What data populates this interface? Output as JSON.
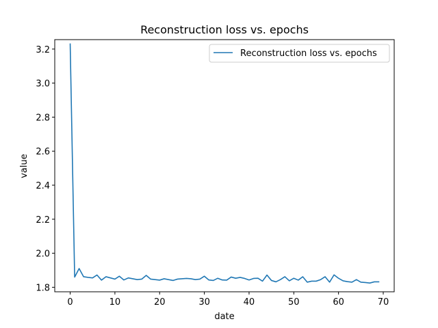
{
  "chart_data": {
    "type": "line",
    "title": "Reconstruction loss vs. epochs",
    "xlabel": "date",
    "ylabel": "value",
    "xlim": [
      -3.45,
      72.45
    ],
    "ylim": [
      1.7735,
      3.2555
    ],
    "xticks": [
      0,
      10,
      20,
      30,
      40,
      50,
      60,
      70
    ],
    "yticks": [
      1.8,
      2.0,
      2.2,
      2.4,
      2.6,
      2.8,
      3.0,
      3.2
    ],
    "ytick_labels": [
      "1.8",
      "2.0",
      "2.2",
      "2.4",
      "2.6",
      "2.8",
      "3.0",
      "3.2"
    ],
    "grid": false,
    "legend_position": "top-right",
    "colors": {
      "series": "#1f77b4"
    },
    "series": [
      {
        "name": "Reconstruction loss vs. epochs",
        "x": [
          0,
          1,
          2,
          3,
          4,
          5,
          6,
          7,
          8,
          9,
          10,
          11,
          12,
          13,
          14,
          15,
          16,
          17,
          18,
          19,
          20,
          21,
          22,
          23,
          24,
          25,
          26,
          27,
          28,
          29,
          30,
          31,
          32,
          33,
          34,
          35,
          36,
          37,
          38,
          39,
          40,
          41,
          42,
          43,
          44,
          45,
          46,
          47,
          48,
          49,
          50,
          51,
          52,
          53,
          54,
          55,
          56,
          57,
          58,
          59,
          60,
          61,
          62,
          63,
          64,
          65,
          66,
          67,
          68,
          69
        ],
        "values": [
          3.23,
          1.86,
          1.91,
          1.862,
          1.858,
          1.855,
          1.872,
          1.842,
          1.862,
          1.855,
          1.848,
          1.865,
          1.843,
          1.855,
          1.85,
          1.845,
          1.848,
          1.87,
          1.848,
          1.845,
          1.842,
          1.85,
          1.845,
          1.84,
          1.848,
          1.85,
          1.852,
          1.85,
          1.845,
          1.848,
          1.865,
          1.843,
          1.84,
          1.853,
          1.843,
          1.842,
          1.86,
          1.853,
          1.858,
          1.852,
          1.843,
          1.852,
          1.853,
          1.836,
          1.872,
          1.84,
          1.832,
          1.845,
          1.862,
          1.838,
          1.853,
          1.842,
          1.862,
          1.83,
          1.836,
          1.836,
          1.845,
          1.862,
          1.83,
          1.873,
          1.853,
          1.838,
          1.833,
          1.83,
          1.845,
          1.83,
          1.828,
          1.825,
          1.832,
          1.832
        ]
      }
    ]
  }
}
